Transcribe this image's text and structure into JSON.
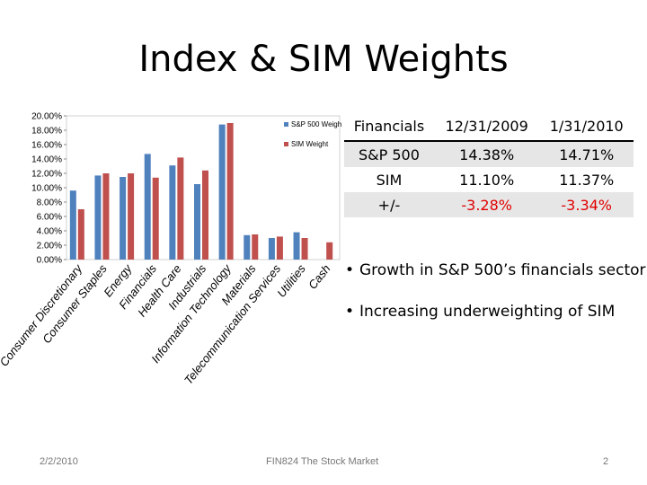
{
  "slide": {
    "title": "Index & SIM Weights"
  },
  "chart_data": {
    "type": "bar",
    "categories": [
      "Consumer Discretionary",
      "Consumer Staples",
      "Energy",
      "Financials",
      "Health Care",
      "Industrials",
      "Information Technology",
      "Materials",
      "Telecommunication Services",
      "Utilities",
      "Cash"
    ],
    "series": [
      {
        "name": "S&P 500 Weigh",
        "color": "#4f81bd",
        "values": [
          9.6,
          11.7,
          11.5,
          14.7,
          13.1,
          10.5,
          18.8,
          3.4,
          3.0,
          3.8,
          0.0
        ]
      },
      {
        "name": "SIM Weight",
        "color": "#c0504d",
        "values": [
          7.0,
          12.0,
          12.0,
          11.4,
          14.2,
          12.4,
          19.0,
          3.5,
          3.2,
          3.0,
          2.4
        ]
      }
    ],
    "y_ticks": [
      "0.00%",
      "2.00%",
      "4.00%",
      "6.00%",
      "8.00%",
      "10.00%",
      "12.00%",
      "14.00%",
      "16.00%",
      "18.00%",
      "20.00%"
    ],
    "ylim": [
      0,
      20
    ],
    "legend_position": "top-right"
  },
  "table": {
    "headers": [
      "Financials",
      "12/31/2009",
      "1/31/2010"
    ],
    "rows": [
      [
        "S&P 500",
        "14.38%",
        "14.71%"
      ],
      [
        "SIM",
        "11.10%",
        "11.37%"
      ],
      [
        "+/-",
        "-3.28%",
        "-3.34%"
      ]
    ]
  },
  "bullets": [
    "Growth in S&P 500’s financials sector",
    "Increasing underweighting of SIM"
  ],
  "footer": {
    "date": "2/2/2010",
    "center": "FIN824 The Stock Market",
    "page": "2"
  }
}
